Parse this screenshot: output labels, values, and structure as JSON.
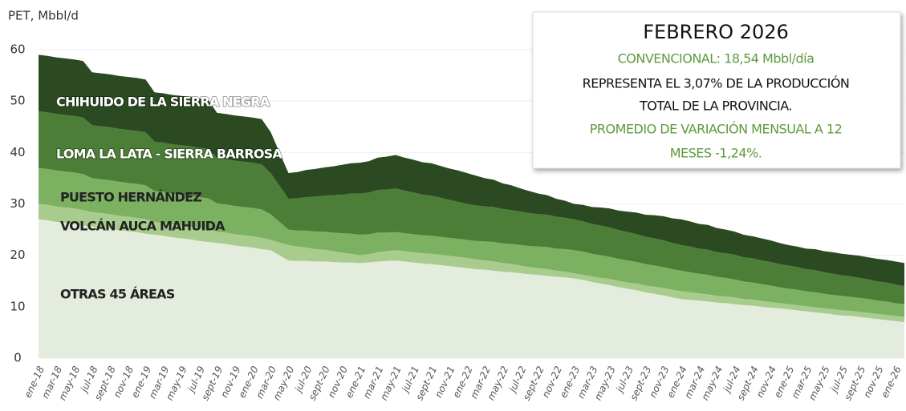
{
  "chart_data": {
    "type": "stacked_area",
    "y_axis_label": "PET, Mbbl/d",
    "ylim": [
      0,
      60
    ],
    "yticks": [
      0,
      10,
      20,
      30,
      40,
      50,
      60
    ],
    "grid": true,
    "categories": [
      "ene-18",
      null,
      "mar-18",
      null,
      "may-18",
      null,
      "jul-18",
      null,
      "sept-18",
      null,
      "nov-18",
      null,
      "ene-19",
      null,
      "mar-19",
      null,
      "may-19",
      null,
      "jul-19",
      null,
      "sept-19",
      null,
      "nov-19",
      null,
      "ene-20",
      null,
      "mar-20",
      null,
      "may-20",
      null,
      "jul-20",
      null,
      "sept-20",
      null,
      "nov-20",
      null,
      "ene-21",
      null,
      "mar-21",
      null,
      "may-21",
      null,
      "jul-21",
      null,
      "sept-21",
      null,
      "nov-21",
      null,
      "ene-22",
      null,
      "mar-22",
      null,
      "may-22",
      null,
      "jul-22",
      null,
      "sept-22",
      null,
      "nov-22",
      null,
      "ene-23",
      null,
      "mar-23",
      null,
      "may-23",
      null,
      "jul-23",
      null,
      "sept-23",
      null,
      "nov-23",
      null,
      "ene-24",
      null,
      "mar-24",
      null,
      "may-24",
      null,
      "jul-24",
      null,
      "sept-24",
      null,
      "nov-24",
      null,
      "ene-25",
      null,
      "mar-25",
      null,
      "may-25",
      null,
      "jul-25",
      null,
      "sept-25",
      null,
      "nov-25",
      null,
      "ene-26",
      null
    ],
    "series": [
      {
        "name": "OTRAS 45 ÁREAS",
        "color": "#e4ecdd",
        "values": [
          27,
          26.8,
          26.5,
          26.3,
          26.1,
          25.8,
          25.6,
          25.4,
          25.2,
          24.9,
          24.7,
          24.5,
          24.2,
          24,
          23.8,
          23.5,
          23.3,
          23.1,
          22.8,
          22.6,
          22.4,
          22.2,
          21.9,
          21.7,
          21.5,
          21.2,
          21,
          20,
          19,
          18.9,
          18.9,
          18.8,
          18.8,
          18.7,
          18.6,
          18.6,
          18.5,
          18.6,
          18.8,
          18.9,
          19,
          18.8,
          18.6,
          18.4,
          18.3,
          18.1,
          17.9,
          17.7,
          17.5,
          17.3,
          17.2,
          17,
          16.8,
          16.7,
          16.5,
          16.3,
          16.2,
          16,
          15.8,
          15.7,
          15.5,
          15.2,
          14.8,
          14.5,
          14.2,
          13.8,
          13.5,
          13.2,
          12.8,
          12.5,
          12.2,
          11.8,
          11.5,
          11.3,
          11.2,
          11,
          10.8,
          10.7,
          10.5,
          10.3,
          10.2,
          10,
          9.8,
          9.7,
          9.5,
          9.3,
          9.1,
          8.9,
          8.7,
          8.5,
          8.3,
          8.2,
          8,
          7.8,
          7.6,
          7.4,
          7.2,
          7
        ]
      },
      {
        "name": "VOLCÁN AUCA MAHUIDA",
        "color": "#a8cc8e",
        "values": [
          3,
          3,
          3,
          3,
          3,
          3,
          2.8,
          2.8,
          2.8,
          2.8,
          2.8,
          2.8,
          2.8,
          2.5,
          2.5,
          2.5,
          2.5,
          2.5,
          2.5,
          2.5,
          2.2,
          2.2,
          2.2,
          2.2,
          2.2,
          2.2,
          2,
          2.5,
          3,
          2.8,
          2.6,
          2.4,
          2.3,
          2.1,
          1.9,
          1.7,
          1.5,
          1.6,
          1.8,
          1.9,
          2,
          2,
          2,
          2,
          2,
          2,
          2,
          2,
          2,
          1.9,
          1.8,
          1.8,
          1.7,
          1.6,
          1.5,
          1.4,
          1.3,
          1.3,
          1.2,
          1.1,
          1,
          1,
          1.1,
          1.1,
          1.2,
          1.2,
          1.2,
          1.3,
          1.3,
          1.4,
          1.4,
          1.5,
          1.5,
          1.5,
          1.4,
          1.4,
          1.3,
          1.3,
          1.3,
          1.2,
          1.2,
          1.1,
          1.1,
          1,
          1,
          1,
          1,
          1,
          1,
          1,
          1,
          1,
          1,
          1,
          1,
          1,
          1,
          1
        ]
      },
      {
        "name": "PUESTO HERNÁNDEZ",
        "color": "#7db162",
        "values": [
          7,
          7,
          7,
          7,
          7,
          7,
          6.6,
          6.6,
          6.6,
          6.6,
          6.6,
          6.6,
          6.6,
          6,
          6,
          6,
          6,
          6,
          6,
          6,
          5.5,
          5.5,
          5.5,
          5.5,
          5.5,
          5.5,
          5,
          4,
          3,
          3.1,
          3.3,
          3.4,
          3.5,
          3.6,
          3.8,
          3.9,
          4,
          3.9,
          3.8,
          3.6,
          3.5,
          3.5,
          3.5,
          3.5,
          3.5,
          3.5,
          3.5,
          3.5,
          3.5,
          3.6,
          3.7,
          3.8,
          3.8,
          3.9,
          4,
          4.1,
          4.2,
          4.3,
          4.3,
          4.4,
          4.5,
          4.5,
          4.4,
          4.4,
          4.3,
          4.3,
          4.3,
          4.2,
          4.2,
          4.1,
          4.1,
          4,
          4,
          3.9,
          3.8,
          3.8,
          3.7,
          3.6,
          3.5,
          3.4,
          3.3,
          3.3,
          3.2,
          3.1,
          3,
          3,
          2.9,
          2.9,
          2.8,
          2.8,
          2.8,
          2.7,
          2.7,
          2.7,
          2.6,
          2.6,
          2.5,
          2.5
        ]
      },
      {
        "name": "LOMA LA LATA - SIERRA BARROSA",
        "color": "#4d7e37",
        "values": [
          11,
          11,
          11,
          11,
          11,
          11,
          10.3,
          10.3,
          10.3,
          10.3,
          10.3,
          10.3,
          10.3,
          9.6,
          9.6,
          9.6,
          9.6,
          9.6,
          9.6,
          9.6,
          8.8,
          8.8,
          8.8,
          8.8,
          8.8,
          8.8,
          8,
          7,
          6,
          6.3,
          6.5,
          6.8,
          7,
          7.3,
          7.5,
          7.8,
          8,
          8.1,
          8.3,
          8.4,
          8.5,
          8.3,
          8.1,
          7.9,
          7.8,
          7.6,
          7.4,
          7.2,
          7,
          6.9,
          6.8,
          6.8,
          6.7,
          6.6,
          6.5,
          6.4,
          6.3,
          6.3,
          6.2,
          6.1,
          6,
          5.9,
          5.8,
          5.8,
          5.7,
          5.6,
          5.5,
          5.4,
          5.3,
          5.3,
          5.2,
          5.1,
          5,
          5,
          4.9,
          4.9,
          4.8,
          4.8,
          4.8,
          4.7,
          4.7,
          4.6,
          4.6,
          4.5,
          4.5,
          4.4,
          4.3,
          4.3,
          4.2,
          4.1,
          4,
          4,
          3.9,
          3.8,
          3.7,
          3.7,
          3.6,
          3.5
        ]
      },
      {
        "name": "CHIHUIDO DE LA SIERRA NEGRA",
        "color": "#2b4a21",
        "values": [
          11,
          11,
          11,
          11,
          11,
          11,
          10.3,
          10.3,
          10.3,
          10.3,
          10.3,
          10.3,
          10.3,
          9.6,
          9.6,
          9.6,
          9.6,
          9.6,
          9.6,
          9.6,
          8.8,
          8.8,
          8.8,
          8.8,
          8.8,
          8.8,
          8,
          6.5,
          5,
          5.1,
          5.3,
          5.4,
          5.5,
          5.6,
          5.8,
          5.9,
          6,
          6.1,
          6.3,
          6.4,
          6.5,
          6.4,
          6.4,
          6.3,
          6.3,
          6.2,
          6.1,
          6.1,
          6,
          5.8,
          5.5,
          5.3,
          5,
          4.8,
          4.5,
          4.3,
          4,
          3.8,
          3.5,
          3.3,
          3,
          3.2,
          3.3,
          3.5,
          3.7,
          3.8,
          4,
          4.2,
          4.3,
          4.5,
          4.7,
          4.8,
          5,
          4.9,
          4.8,
          4.8,
          4.7,
          4.6,
          4.5,
          4.4,
          4.3,
          4.3,
          4.2,
          4.1,
          4,
          4,
          4,
          4.1,
          4.1,
          4.2,
          4.2,
          4.2,
          4.3,
          4.3,
          4.4,
          4.4,
          4.5,
          4.5
        ]
      }
    ],
    "annotation": {
      "title": "FEBRERO 2026",
      "lines": [
        "CONVENCIONAL: 18,54 Mbbl/día",
        "REPRESENTA EL 3,07% DE LA PRODUCCIÓN",
        "TOTAL DE LA PROVINCIA.",
        "PROMEDIO DE VARIACIÓN MENSUAL A 12",
        "MESES -1,24%."
      ]
    }
  }
}
